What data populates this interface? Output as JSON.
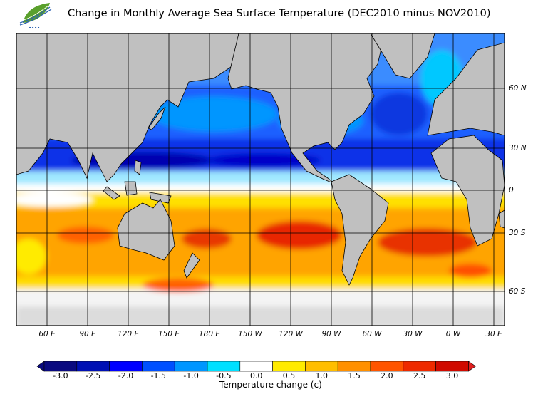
{
  "title": "Change in Monthly Average Sea Surface Temperature (DEC2010 minus NOV2010)",
  "logo": {
    "name": "agency-leaf-logo",
    "colors": [
      "#5aa02c",
      "#2a5fb0"
    ]
  },
  "map": {
    "projection_extent_lon": [
      37,
      397
    ],
    "lon_labels": [
      {
        "lon": 60,
        "label": "60 E"
      },
      {
        "lon": 90,
        "label": "90 E"
      },
      {
        "lon": 120,
        "label": "120 E"
      },
      {
        "lon": 150,
        "label": "150 E"
      },
      {
        "lon": 180,
        "label": "180 E"
      },
      {
        "lon": 210,
        "label": "150 W"
      },
      {
        "lon": 240,
        "label": "120 W"
      },
      {
        "lon": 270,
        "label": "90 W"
      },
      {
        "lon": 300,
        "label": "60 W"
      },
      {
        "lon": 330,
        "label": "30 W"
      },
      {
        "lon": 360,
        "label": "0 W"
      },
      {
        "lon": 390,
        "label": "30 E"
      }
    ],
    "lat_labels": [
      {
        "lat": 60,
        "label": "60 N"
      },
      {
        "lat": 30,
        "label": "30 N"
      },
      {
        "lat": 0,
        "label": "0"
      },
      {
        "lat": -30,
        "label": "30 S"
      },
      {
        "lat": -60,
        "label": "60 S"
      }
    ],
    "land_color": "#c0c0c0",
    "ice_color": "#e0e0e0"
  },
  "colorbar": {
    "title": "Temperature change  (c)",
    "labels": [
      "-3.0",
      "-2.5",
      "-2.0",
      "-1.5",
      "-1.0",
      "-0.5",
      "0.0",
      "0.5",
      "1.0",
      "1.5",
      "2.0",
      "2.5",
      "3.0"
    ],
    "colors": [
      "#0a0a80",
      "#0010b4",
      "#0000ff",
      "#0050ff",
      "#0096ff",
      "#00e0ff",
      "#ffffff",
      "#ffeb00",
      "#ffbe00",
      "#ff9000",
      "#ff5500",
      "#ee2a00",
      "#d00a00"
    ],
    "under_color": "#0a0a80",
    "over_color": "#e02020"
  }
}
